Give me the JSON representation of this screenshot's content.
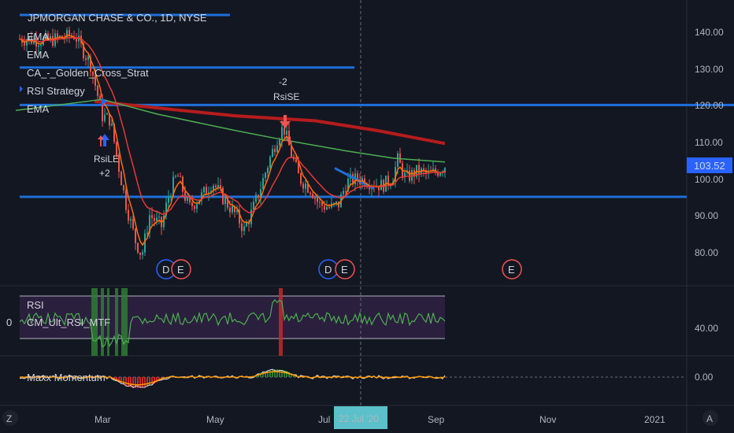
{
  "header": {
    "title": "JPMORGAN CHASE & CO., 1D, NYSE",
    "indicators": [
      "EMA",
      "EMA",
      "CA_-_Golden_Cross_Strat",
      "RSI Strategy",
      "EMA"
    ]
  },
  "colors": {
    "background": "#131722",
    "up": "#26a69a",
    "down": "#ef5350",
    "ema_fast": "#ff6f00",
    "ema_red": "#e53935",
    "ema_green": "#4caf50",
    "ema_long": "#b71c1c",
    "hline": "#1e6fd9",
    "price_tag": "#2962ff",
    "rsi_line": "#4caf50",
    "rsi_band": "#2a1f3d",
    "momentum_white": "#e0e0e0",
    "momentum_orange": "#ff9800"
  },
  "price_pane": {
    "current_price": "103.52",
    "y_ticks": [
      "140.00",
      "130.00",
      "120.00",
      "110.00",
      "100.00",
      "90.00",
      "80.00"
    ],
    "horizontal_lines": [
      144.5,
      130.2,
      120.0,
      95.0
    ],
    "annotations": [
      {
        "label": "RsiLE",
        "sub": "+2",
        "kind": "buy"
      },
      {
        "label": "-2",
        "sub": "RsiSE",
        "kind": "sell"
      }
    ],
    "event_badges": [
      "D",
      "E",
      "D",
      "E",
      "E"
    ]
  },
  "rsi_pane": {
    "labels": [
      "RSI",
      "CM_Ult_RSI_MTF"
    ],
    "left_value": "0",
    "y_tick": "40.00"
  },
  "momentum_pane": {
    "label": "Maxx Momentum",
    "y_tick": "0.00"
  },
  "time_axis": {
    "labels": [
      "Mar",
      "May",
      "Jul",
      "Sep",
      "Nov",
      "2021"
    ],
    "crosshair_date": "22 Jul '20"
  },
  "corner_buttons": {
    "left": "Z",
    "right": "A"
  },
  "chart_data": {
    "type": "candlestick",
    "title": "JPMORGAN CHASE & CO., 1D, NYSE",
    "ylim": [
      74,
      147
    ],
    "ema_long_points": [
      [
        120,
        121
      ],
      [
        200,
        119.2
      ],
      [
        300,
        117
      ],
      [
        400,
        115.7
      ],
      [
        480,
        113
      ],
      [
        565,
        109.5
      ]
    ],
    "ema_green_points": [
      [
        20,
        118.5
      ],
      [
        130,
        121.5
      ],
      [
        200,
        117.5
      ],
      [
        300,
        113
      ],
      [
        360,
        110.5
      ],
      [
        440,
        107.5
      ],
      [
        500,
        105.5
      ],
      [
        565,
        104.5
      ]
    ],
    "segment_line": [
      [
        425,
        102.8
      ],
      [
        475,
        97.2
      ]
    ]
  }
}
